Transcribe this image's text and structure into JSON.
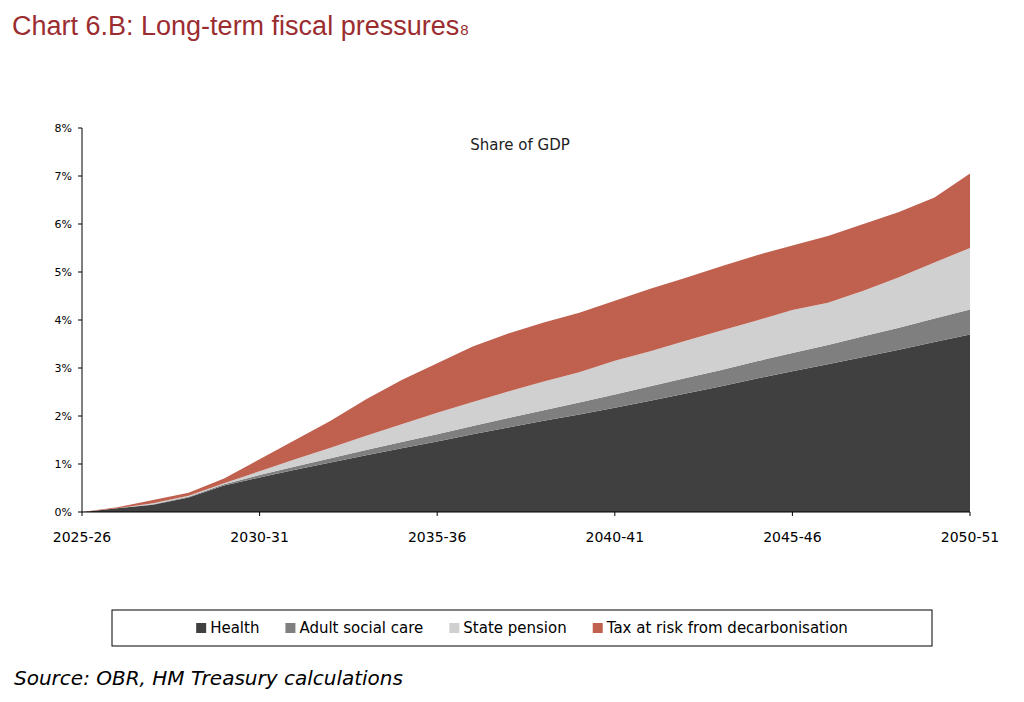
{
  "chart_data": {
    "type": "area",
    "stacked": true,
    "grid": false,
    "legend": "bottom",
    "title": "Chart 6.B: Long-term fiscal pressures",
    "title_footnote": "8",
    "subtitle": "Share of GDP",
    "source": "Source: OBR, HM Treasury calculations",
    "categories": [
      "2025-26",
      null,
      null,
      null,
      null,
      "2030-31",
      null,
      null,
      null,
      null,
      "2035-36",
      null,
      null,
      null,
      null,
      "2040-41",
      null,
      null,
      null,
      null,
      "2045-46",
      null,
      null,
      null,
      null,
      "2050-51"
    ],
    "ylim": [
      0,
      8
    ],
    "yticks": [
      {
        "value": 0,
        "label": "0%"
      },
      {
        "value": 1,
        "label": "1%"
      },
      {
        "value": 2,
        "label": "2%"
      },
      {
        "value": 3,
        "label": "3%"
      },
      {
        "value": 4,
        "label": "4%"
      },
      {
        "value": 5,
        "label": "5%"
      },
      {
        "value": 6,
        "label": "6%"
      },
      {
        "value": 7,
        "label": "7%"
      },
      {
        "value": 8,
        "label": "8%"
      }
    ],
    "series": [
      {
        "name": "Health",
        "color": "#404040",
        "values": [
          0,
          0.08,
          0.15,
          0.3,
          0.55,
          0.72,
          0.88,
          1.03,
          1.18,
          1.33,
          1.47,
          1.62,
          1.76,
          1.9,
          2.03,
          2.17,
          2.32,
          2.47,
          2.62,
          2.78,
          2.93,
          3.08,
          3.23,
          3.38,
          3.54,
          3.7
        ]
      },
      {
        "name": "Adult social care",
        "color": "#7f7f7f",
        "values": [
          0,
          0,
          0.01,
          0.02,
          0.03,
          0.05,
          0.07,
          0.09,
          0.11,
          0.13,
          0.15,
          0.17,
          0.2,
          0.22,
          0.25,
          0.28,
          0.3,
          0.32,
          0.34,
          0.36,
          0.38,
          0.4,
          0.43,
          0.46,
          0.49,
          0.52
        ]
      },
      {
        "name": "State pension",
        "color": "#d0d0d0",
        "values": [
          0,
          0,
          0.02,
          0.02,
          0.02,
          0.08,
          0.15,
          0.22,
          0.3,
          0.37,
          0.45,
          0.5,
          0.55,
          0.6,
          0.63,
          0.7,
          0.73,
          0.78,
          0.82,
          0.85,
          0.9,
          0.88,
          0.95,
          1.05,
          1.17,
          1.28
        ]
      },
      {
        "name": "Tax at risk from decarbonisation",
        "color": "#c0614f",
        "values": [
          0,
          0.02,
          0.07,
          0.06,
          0.1,
          0.25,
          0.4,
          0.56,
          0.76,
          0.92,
          1.03,
          1.16,
          1.21,
          1.23,
          1.24,
          1.25,
          1.3,
          1.31,
          1.34,
          1.36,
          1.34,
          1.39,
          1.39,
          1.36,
          1.35,
          1.55
        ]
      }
    ]
  }
}
